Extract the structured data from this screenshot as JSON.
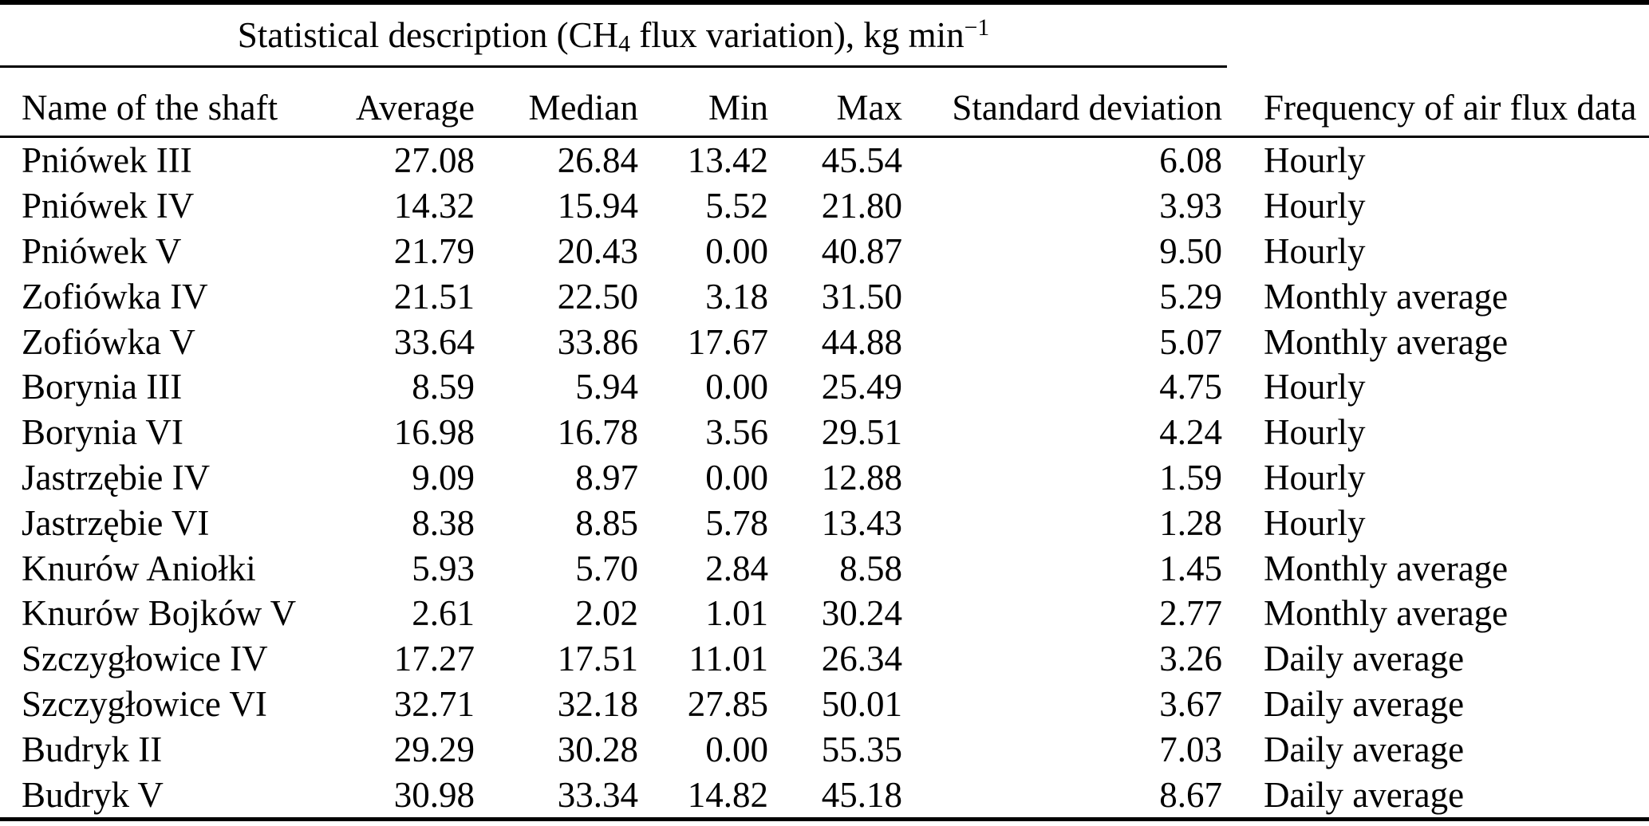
{
  "title": {
    "prefix": "Statistical description (CH",
    "subscript": "4",
    "middle": " flux variation), kg min",
    "superscript": "−1"
  },
  "colors": {
    "text": "#000000",
    "background": "#ffffff",
    "rule": "#000000"
  },
  "table": {
    "columns": [
      {
        "label": "Name of the shaft"
      },
      {
        "label": "Average"
      },
      {
        "label": "Median"
      },
      {
        "label": "Min"
      },
      {
        "label": "Max"
      },
      {
        "label": "Standard deviation"
      },
      {
        "label": "Frequency of air flux data"
      }
    ],
    "rows": [
      {
        "name": "Pniówek III",
        "average": "27.08",
        "median": "26.84",
        "min": "13.42",
        "max": "45.54",
        "std": "6.08",
        "frequency": "Hourly"
      },
      {
        "name": "Pniówek IV",
        "average": "14.32",
        "median": "15.94",
        "min": "5.52",
        "max": "21.80",
        "std": "3.93",
        "frequency": "Hourly"
      },
      {
        "name": "Pniówek V",
        "average": "21.79",
        "median": "20.43",
        "min": "0.00",
        "max": "40.87",
        "std": "9.50",
        "frequency": "Hourly"
      },
      {
        "name": "Zofiówka IV",
        "average": "21.51",
        "median": "22.50",
        "min": "3.18",
        "max": "31.50",
        "std": "5.29",
        "frequency": "Monthly average"
      },
      {
        "name": "Zofiówka V",
        "average": "33.64",
        "median": "33.86",
        "min": "17.67",
        "max": "44.88",
        "std": "5.07",
        "frequency": "Monthly average"
      },
      {
        "name": "Borynia III",
        "average": "8.59",
        "median": "5.94",
        "min": "0.00",
        "max": "25.49",
        "std": "4.75",
        "frequency": "Hourly"
      },
      {
        "name": "Borynia VI",
        "average": "16.98",
        "median": "16.78",
        "min": "3.56",
        "max": "29.51",
        "std": "4.24",
        "frequency": "Hourly"
      },
      {
        "name": "Jastrzębie IV",
        "average": "9.09",
        "median": "8.97",
        "min": "0.00",
        "max": "12.88",
        "std": "1.59",
        "frequency": "Hourly"
      },
      {
        "name": "Jastrzębie VI",
        "average": "8.38",
        "median": "8.85",
        "min": "5.78",
        "max": "13.43",
        "std": "1.28",
        "frequency": "Hourly"
      },
      {
        "name": "Knurów Aniołki",
        "average": "5.93",
        "median": "5.70",
        "min": "2.84",
        "max": "8.58",
        "std": "1.45",
        "frequency": "Monthly average"
      },
      {
        "name": "Knurów Bojków V",
        "average": "2.61",
        "median": "2.02",
        "min": "1.01",
        "max": "30.24",
        "std": "2.77",
        "frequency": "Monthly average"
      },
      {
        "name": "Szczygłowice IV",
        "average": "17.27",
        "median": "17.51",
        "min": "11.01",
        "max": "26.34",
        "std": "3.26",
        "frequency": "Daily average"
      },
      {
        "name": "Szczygłowice VI",
        "average": "32.71",
        "median": "32.18",
        "min": "27.85",
        "max": "50.01",
        "std": "3.67",
        "frequency": "Daily average"
      },
      {
        "name": "Budryk II",
        "average": "29.29",
        "median": "30.28",
        "min": "0.00",
        "max": "55.35",
        "std": "7.03",
        "frequency": "Daily average"
      },
      {
        "name": "Budryk V",
        "average": "30.98",
        "median": "33.34",
        "min": "14.82",
        "max": "45.18",
        "std": "8.67",
        "frequency": "Daily average"
      }
    ]
  }
}
